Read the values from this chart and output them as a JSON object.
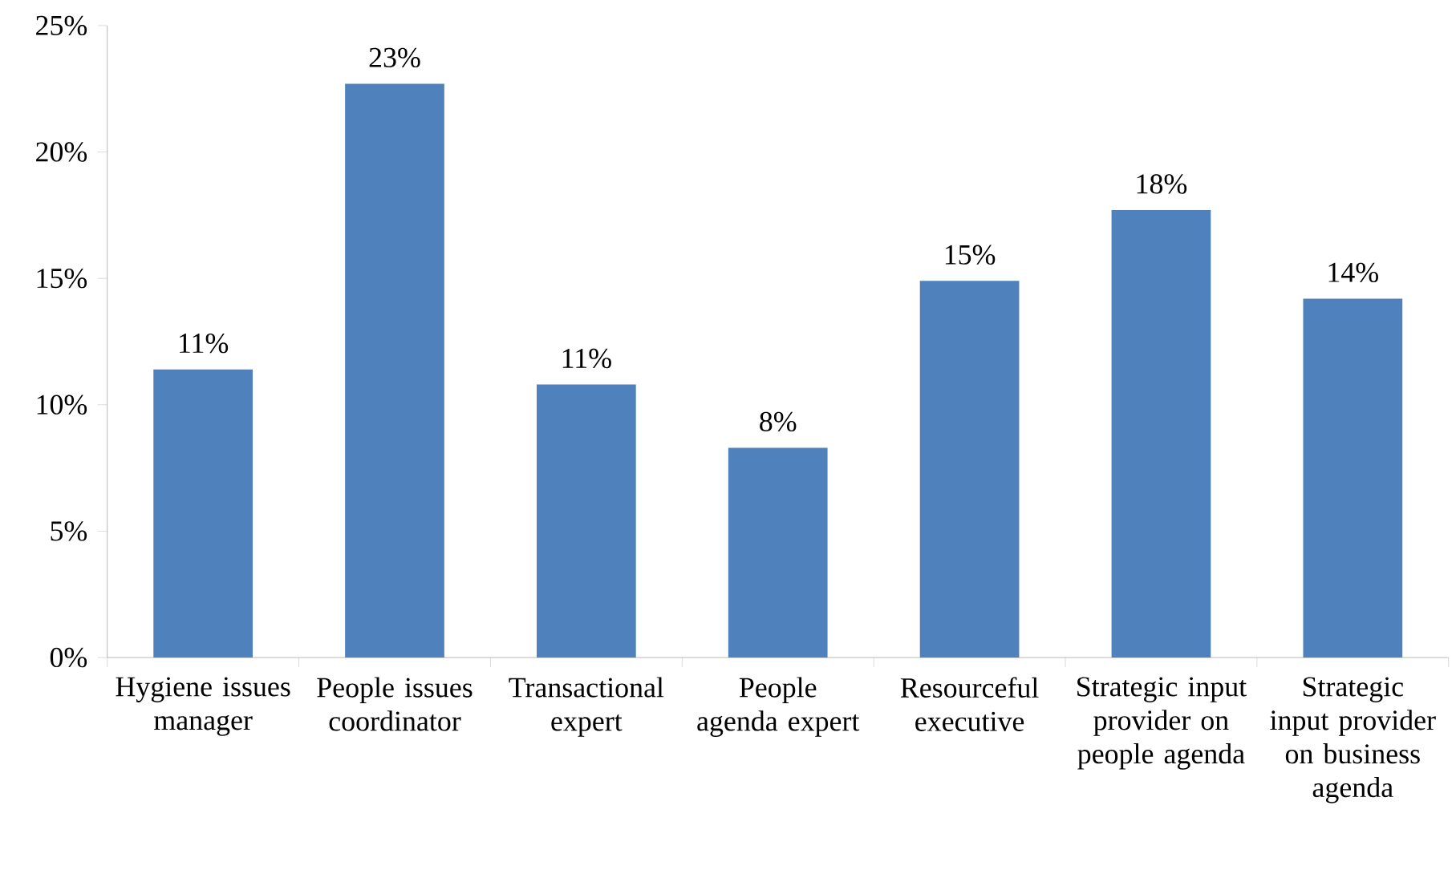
{
  "chart_data": {
    "type": "bar",
    "categories": [
      "Hygiene issues manager",
      "People issues coordinator",
      "Transactional expert",
      "People agenda expert",
      "Resourceful executive",
      "Strategic input provider on people agenda",
      "Strategic input provider on business agenda"
    ],
    "values": [
      11.4,
      22.7,
      10.8,
      8.3,
      14.9,
      17.7,
      14.2
    ],
    "value_labels": [
      "11%",
      "23%",
      "11%",
      "8%",
      "15%",
      "18%",
      "14%"
    ],
    "color": "#4f81bd",
    "ylim": [
      0,
      25
    ],
    "yticks": [
      {
        "value": 0,
        "label": "0%"
      },
      {
        "value": 5,
        "label": "5%"
      },
      {
        "value": 10,
        "label": "10%"
      },
      {
        "value": 15,
        "label": "15%"
      },
      {
        "value": 20,
        "label": "20%"
      },
      {
        "value": 25,
        "label": "25%"
      }
    ],
    "grid": false
  }
}
